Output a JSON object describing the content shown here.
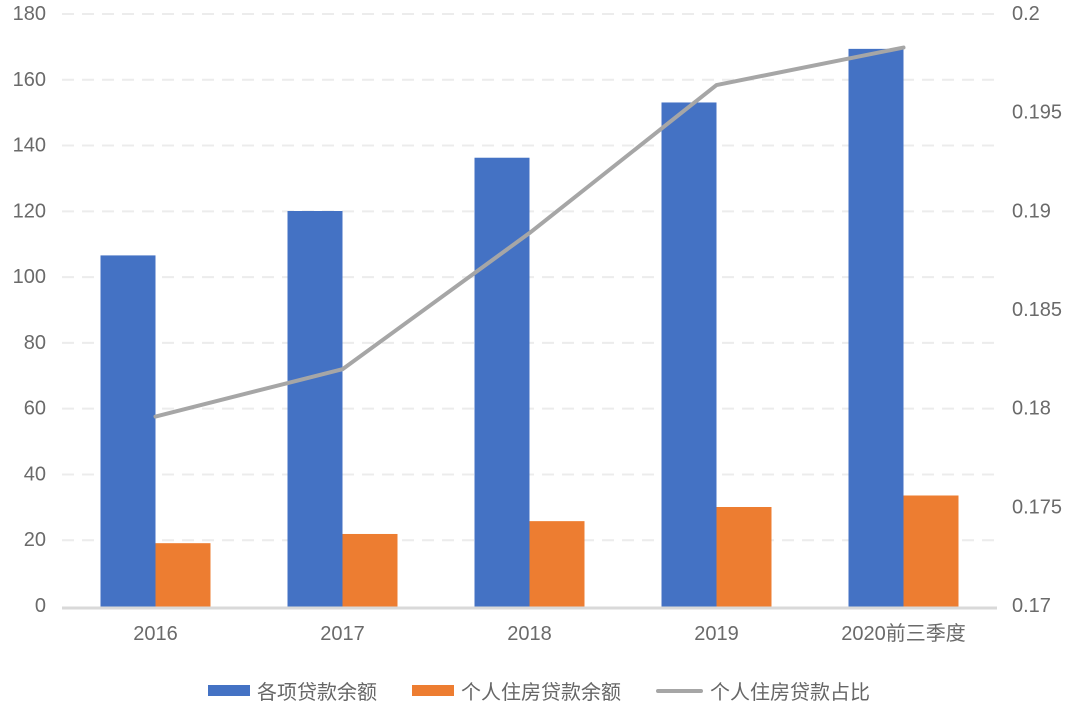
{
  "chart_data": {
    "type": "bar",
    "subtype": "grouped-bar-with-line-combo",
    "title": "",
    "categories": [
      "2016",
      "2017",
      "2018",
      "2019",
      "2020前三季度"
    ],
    "series": [
      {
        "name": "各项贷款余额",
        "type": "bar",
        "axis": "left",
        "color": "#4472C4",
        "values": [
          106.6,
          120.1,
          136.3,
          153.1,
          169.4
        ]
      },
      {
        "name": "个人住房贷款余额",
        "type": "bar",
        "axis": "left",
        "color": "#ED7D31",
        "values": [
          19.1,
          21.9,
          25.8,
          30.1,
          33.6
        ]
      },
      {
        "name": "个人住房贷款占比",
        "type": "line",
        "axis": "right",
        "color": "#A6A6A6",
        "values": [
          0.1796,
          0.182,
          0.1889,
          0.1964,
          0.1983
        ]
      }
    ],
    "left_axis": {
      "min": 0,
      "max": 180,
      "step": 20,
      "tick_labels": [
        "0",
        "20",
        "40",
        "60",
        "80",
        "100",
        "120",
        "140",
        "160",
        "180"
      ]
    },
    "right_axis": {
      "min": 0.17,
      "max": 0.2,
      "step": 0.005,
      "tick_labels": [
        "0.17",
        "0.175",
        "0.18",
        "0.185",
        "0.19",
        "0.195",
        "0.2"
      ]
    },
    "grid": {
      "horizontal": true,
      "style": "dashed",
      "vertical": false
    },
    "legend_position": "bottom"
  },
  "colors": {
    "bar_blue": "#4472C4",
    "bar_orange": "#ED7D31",
    "line_gray": "#A6A6A6",
    "axis_text": "#6a6a6a",
    "gridline": "#ececec",
    "baseline": "#d9d9d9",
    "background": "#ffffff"
  },
  "legend": {
    "items": [
      {
        "label": "各项贷款余额"
      },
      {
        "label": "个人住房贷款余额"
      },
      {
        "label": "个人住房贷款占比"
      }
    ]
  }
}
